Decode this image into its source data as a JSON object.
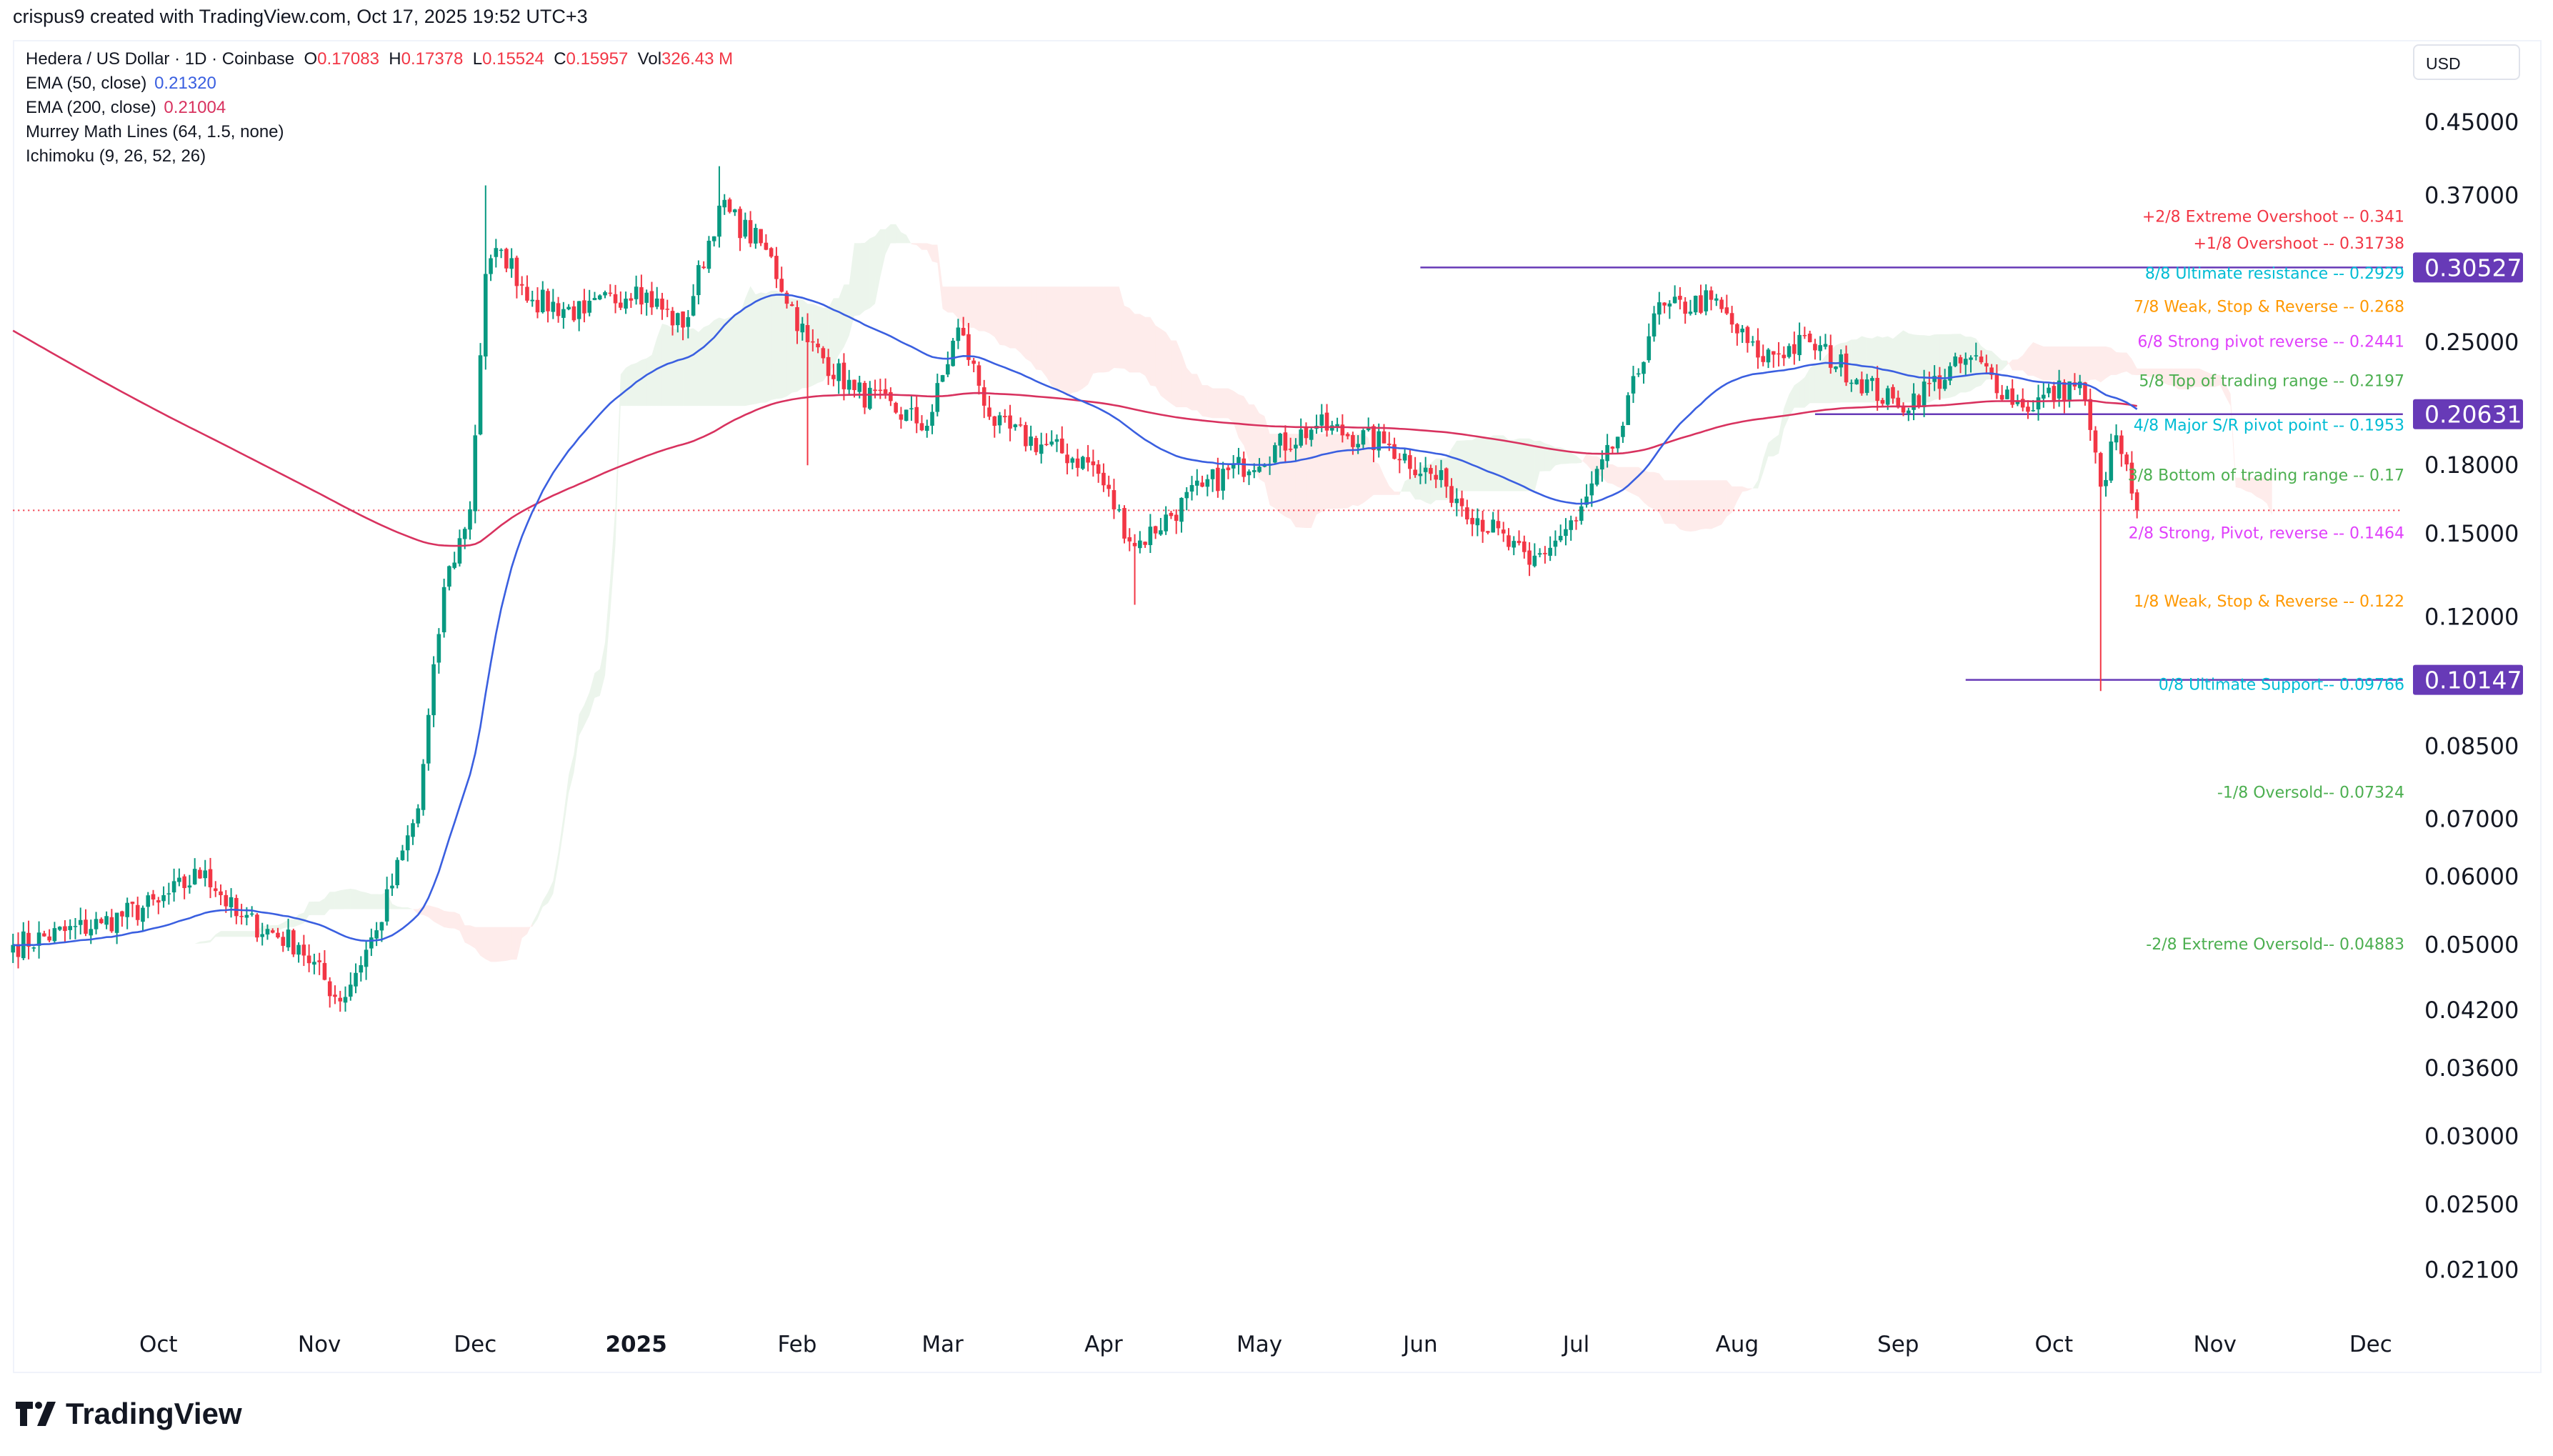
{
  "credit": "crispus9 created with TradingView.com, Oct 17, 2025 19:52 UTC+3",
  "legend": {
    "symbol": "Hedera / US Dollar · 1D · Coinbase",
    "o_label": "O",
    "o": "0.17083",
    "h_label": "H",
    "h": "0.17378",
    "l_label": "L",
    "l": "0.15524",
    "c_label": "C",
    "c": "0.15957",
    "vol_label": "Vol",
    "vol": "326.43 M",
    "ema50_label": "EMA (50, close)",
    "ema50": "0.21320",
    "ema200_label": "EMA (200, close)",
    "ema200": "0.21004",
    "murrey_label": "Murrey Math Lines (64, 1.5, none)",
    "ichimoku_label": "Ichimoku (9, 26, 52, 26)"
  },
  "currency": "USD",
  "brand": "TradingView",
  "colors": {
    "up": "#089981",
    "down": "#f23645",
    "ema50": "#3a5fe0",
    "ema200": "#d8325f",
    "purple": "#673ab7"
  },
  "chart_data": {
    "type": "candlestick",
    "title": "Hedera / US Dollar · 1D · Coinbase",
    "yscale": "log",
    "ylim": [
      0.019,
      0.5
    ],
    "start_date": "2024-09-03",
    "end_date": "2025-10-17",
    "price_ticks": [
      "0.45000",
      "0.37000",
      "0.25000",
      "0.18000",
      "0.15000",
      "0.12000",
      "0.08500",
      "0.07000",
      "0.06000",
      "0.05000",
      "0.04200",
      "0.03600",
      "0.03000",
      "0.02500",
      "0.02100"
    ],
    "time_ticks": [
      "Oct",
      "Nov",
      "Dec",
      "2025",
      "Feb",
      "Mar",
      "Apr",
      "May",
      "Jun",
      "Jul",
      "Aug",
      "Sep",
      "Oct",
      "Nov",
      "Dec"
    ],
    "close_anchors": [
      [
        "2024-09-03",
        0.05
      ],
      [
        "2024-09-20",
        0.053
      ],
      [
        "2024-10-01",
        0.056
      ],
      [
        "2024-10-10",
        0.061
      ],
      [
        "2024-10-16",
        0.054
      ],
      [
        "2024-10-28",
        0.05
      ],
      [
        "2024-11-05",
        0.043
      ],
      [
        "2024-11-12",
        0.052
      ],
      [
        "2024-11-20",
        0.072
      ],
      [
        "2024-11-25",
        0.13
      ],
      [
        "2024-11-30",
        0.16
      ],
      [
        "2024-12-03",
        0.3
      ],
      [
        "2024-12-06",
        0.32
      ],
      [
        "2024-12-12",
        0.28
      ],
      [
        "2024-12-22",
        0.27
      ],
      [
        "2025-01-01",
        0.29
      ],
      [
        "2025-01-10",
        0.26
      ],
      [
        "2025-01-17",
        0.36
      ],
      [
        "2025-01-26",
        0.32
      ],
      [
        "2025-02-03",
        0.25
      ],
      [
        "2025-02-12",
        0.22
      ],
      [
        "2025-02-26",
        0.2
      ],
      [
        "2025-03-04",
        0.26
      ],
      [
        "2025-03-11",
        0.2
      ],
      [
        "2025-03-30",
        0.18
      ],
      [
        "2025-04-07",
        0.145
      ],
      [
        "2025-04-20",
        0.17
      ],
      [
        "2025-05-12",
        0.2
      ],
      [
        "2025-05-26",
        0.19
      ],
      [
        "2025-06-06",
        0.17
      ],
      [
        "2025-06-22",
        0.138
      ],
      [
        "2025-07-01",
        0.155
      ],
      [
        "2025-07-10",
        0.2
      ],
      [
        "2025-07-16",
        0.27
      ],
      [
        "2025-07-27",
        0.28
      ],
      [
        "2025-08-05",
        0.24
      ],
      [
        "2025-08-15",
        0.25
      ],
      [
        "2025-09-01",
        0.21
      ],
      [
        "2025-09-15",
        0.24
      ],
      [
        "2025-09-25",
        0.21
      ],
      [
        "2025-10-06",
        0.225
      ],
      [
        "2025-10-10",
        0.17
      ],
      [
        "2025-10-13",
        0.195
      ],
      [
        "2025-10-17",
        0.1596
      ]
    ],
    "last_price": 0.15957,
    "price_markers": [
      {
        "label": "0.30527",
        "value": 0.30527,
        "line_from": "2025-06-01"
      },
      {
        "label": "0.20631",
        "value": 0.20631,
        "line_from": "2025-08-16"
      },
      {
        "label": "0.10147",
        "value": 0.10147,
        "line_from": "2025-09-14"
      }
    ],
    "murrey_lines": [
      {
        "text": "+2/8 Extreme Overshoot --  0.341",
        "value": 0.341,
        "color": "#f23645"
      },
      {
        "text": "+1/8 Overshoot --  0.31738",
        "value": 0.31738,
        "color": "#f23645"
      },
      {
        "text": "8/8 Ultimate resistance --  0.2929",
        "value": 0.2929,
        "color": "#00bcd4"
      },
      {
        "text": "7/8 Weak, Stop & Reverse --  0.268",
        "value": 0.268,
        "color": "#ff9800"
      },
      {
        "text": "6/8 Strong pivot reverse --  0.2441",
        "value": 0.2441,
        "color": "#e040fb"
      },
      {
        "text": "5/8 Top of trading range --  0.2197",
        "value": 0.2197,
        "color": "#4caf50"
      },
      {
        "text": "4/8 Major S/R pivot point --  0.1953",
        "value": 0.1953,
        "color": "#00bcd4"
      },
      {
        "text": "3/8 Bottom of trading range --  0.17",
        "value": 0.1709,
        "color": "#4caf50"
      },
      {
        "text": "2/8 Strong, Pivot, reverse --  0.1464",
        "value": 0.1464,
        "color": "#e040fb"
      },
      {
        "text": "1/8 Weak, Stop & Reverse --  0.122",
        "value": 0.122,
        "color": "#ff9800"
      },
      {
        "text": "0/8 Ultimate Support--  0.09766",
        "value": 0.09766,
        "color": "#00bcd4"
      },
      {
        "text": "-1/8 Oversold--  0.07324",
        "value": 0.07324,
        "color": "#4caf50"
      },
      {
        "text": "-2/8 Extreme Oversold--  0.04883",
        "value": 0.04883,
        "color": "#4caf50"
      }
    ],
    "indicators": [
      "EMA 50",
      "EMA 200",
      "Ichimoku (9, 26, 52, 26)",
      "Murrey Math Lines"
    ]
  }
}
